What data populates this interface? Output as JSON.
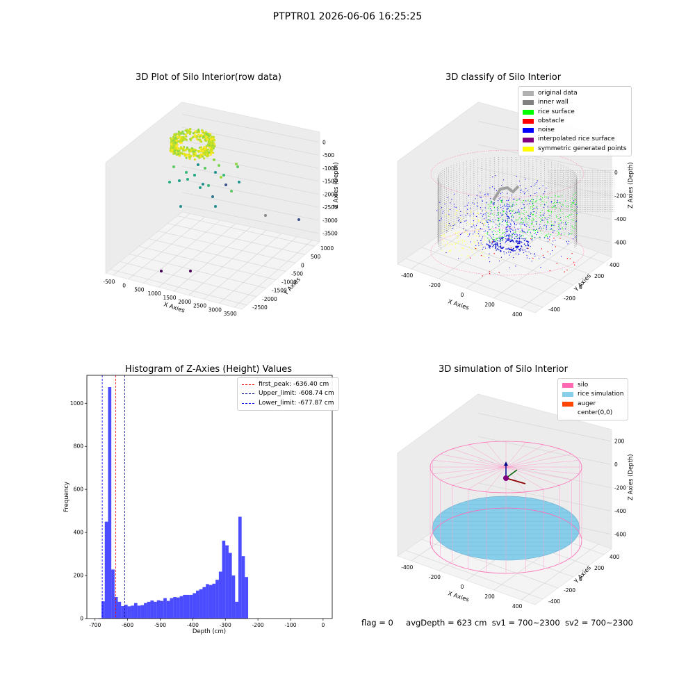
{
  "suptitle": "PTPTR01 2026-06-06 16:25:25",
  "panels": {
    "raw": {
      "title": "3D Plot of Silo Interior(row data)",
      "xlabel": "X Axies",
      "ylabel": "Y Axies",
      "zlabel": "Z Axies (Depth)",
      "xticks": [
        "-500",
        "0",
        "500",
        "1000",
        "1500",
        "2000",
        "2500",
        "3000",
        "3500"
      ],
      "yticks": [
        "1000",
        "500",
        "0",
        "-500",
        "-1000",
        "-1500",
        "-2000",
        "-2500"
      ],
      "zticks": [
        "0",
        "-500",
        "-1000",
        "-1500",
        "-2000",
        "-2500",
        "-3000",
        "-3500"
      ]
    },
    "classify": {
      "title": "3D classify of Silo Interior",
      "xlabel": "X Axies",
      "ylabel": "Y Axies",
      "zlabel": "Z Axies (Depth)",
      "xticks": [
        "-400",
        "-200",
        "0",
        "200",
        "400"
      ],
      "yticks": [
        "400",
        "200",
        "0",
        "-200",
        "-400"
      ],
      "zticks": [
        "200",
        "0",
        "-200",
        "-400",
        "-600"
      ],
      "legend": [
        {
          "label": "original data",
          "color": "#b0b0b0"
        },
        {
          "label": "inner wall",
          "color": "#808080"
        },
        {
          "label": "rice surface",
          "color": "#00ff00"
        },
        {
          "label": "obstacle",
          "color": "#ff0000"
        },
        {
          "label": "noise",
          "color": "#0000ff"
        },
        {
          "label": "interpolated rice surface",
          "color": "#800080"
        },
        {
          "label": "symmetric generated points",
          "color": "#ffff00"
        }
      ]
    },
    "simulation": {
      "title": "3D simulation of Silo Interior",
      "xlabel": "X Axies",
      "ylabel": "Y Axies",
      "zlabel": "Z Axies (Depth)",
      "xticks": [
        "-400",
        "-200",
        "0",
        "200",
        "400"
      ],
      "yticks": [
        "400",
        "200",
        "0",
        "-200",
        "-400"
      ],
      "zticks": [
        "200",
        "0",
        "-200",
        "-400",
        "-600"
      ],
      "legend": [
        {
          "label": "silo",
          "color": "#ff69b4"
        },
        {
          "label": "rice simulation",
          "color": "#87ceeb"
        },
        {
          "label": "auger",
          "color": "#ff4500"
        },
        {
          "label": "center(0,0)",
          "color": "#ffffff"
        }
      ]
    }
  },
  "chart_data": {
    "type": "bar",
    "title": "Histogram of Z-Axies (Height) Values",
    "xlabel": "Depth (cm)",
    "ylabel": "Frequency",
    "xlim": [
      -725,
      28
    ],
    "ylim": [
      0,
      1130
    ],
    "xticks": [
      -700,
      -600,
      -500,
      -400,
      -300,
      -200,
      -100,
      0
    ],
    "yticks": [
      0,
      200,
      400,
      600,
      800,
      1000
    ],
    "bar_color": "#0000ff",
    "bin_start": -690,
    "bin_width": 10,
    "values": [
      2,
      80,
      450,
      1075,
      228,
      100,
      78,
      58,
      64,
      57,
      60,
      72,
      60,
      62,
      72,
      78,
      84,
      78,
      85,
      82,
      95,
      82,
      95,
      100,
      98,
      104,
      110,
      110,
      110,
      118,
      130,
      136,
      146,
      160,
      156,
      162,
      180,
      218,
      362,
      340,
      305,
      200,
      78,
      473,
      290,
      193
    ],
    "lines": [
      {
        "label": "first_peak: -636.40 cm",
        "x": -636.4,
        "color": "#ff0000"
      },
      {
        "label": "Upper_limit: -608.74 cm",
        "x": -608.74,
        "color": "#00008b"
      },
      {
        "label": "Lower_limit: -677.87 cm",
        "x": -677.87,
        "color": "#0000ff"
      }
    ],
    "legend_position": "top-right"
  },
  "footer": {
    "flag": "flag = 0",
    "avg_depth": "avgDepth = 623 cm",
    "sv1": "sv1 = 700~2300",
    "sv2": "sv2 = 700~2300"
  }
}
